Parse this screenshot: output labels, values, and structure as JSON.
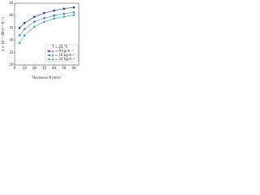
{
  "chart_data": {
    "type": "line",
    "x_label": "Thickness δ (mm)",
    "y_label": "λ × 10⁻³ (W·m⁻¹·K⁻¹)",
    "legend_title": "T = 25 °C",
    "x": [
      5,
      10,
      20,
      30,
      40,
      50,
      60
    ],
    "series": [
      {
        "name": "ρ = 9 kg·m⁻³",
        "color": "#1f3d7a",
        "values": [
          35,
          37,
          39.5,
          41,
          42,
          42.8,
          43.3
        ]
      },
      {
        "name": "ρ = 16 kg·m⁻³",
        "color": "#3f7fbf",
        "values": [
          32,
          34.5,
          37.5,
          39,
          40,
          40.8,
          41.3
        ]
      },
      {
        "name": "ρ = 24 kg·m⁻³",
        "color": "#3aa6a0",
        "values": [
          29,
          32,
          35.5,
          37.5,
          38.8,
          39.6,
          40.2
        ]
      }
    ],
    "xlim": [
      0,
      65
    ],
    "xticks": [
      0,
      10,
      20,
      30,
      40,
      50,
      60
    ],
    "ylim": [
      20,
      45
    ],
    "yticks": [
      20,
      25,
      30,
      35,
      40,
      45
    ],
    "grid": false,
    "legend": "lower right"
  }
}
